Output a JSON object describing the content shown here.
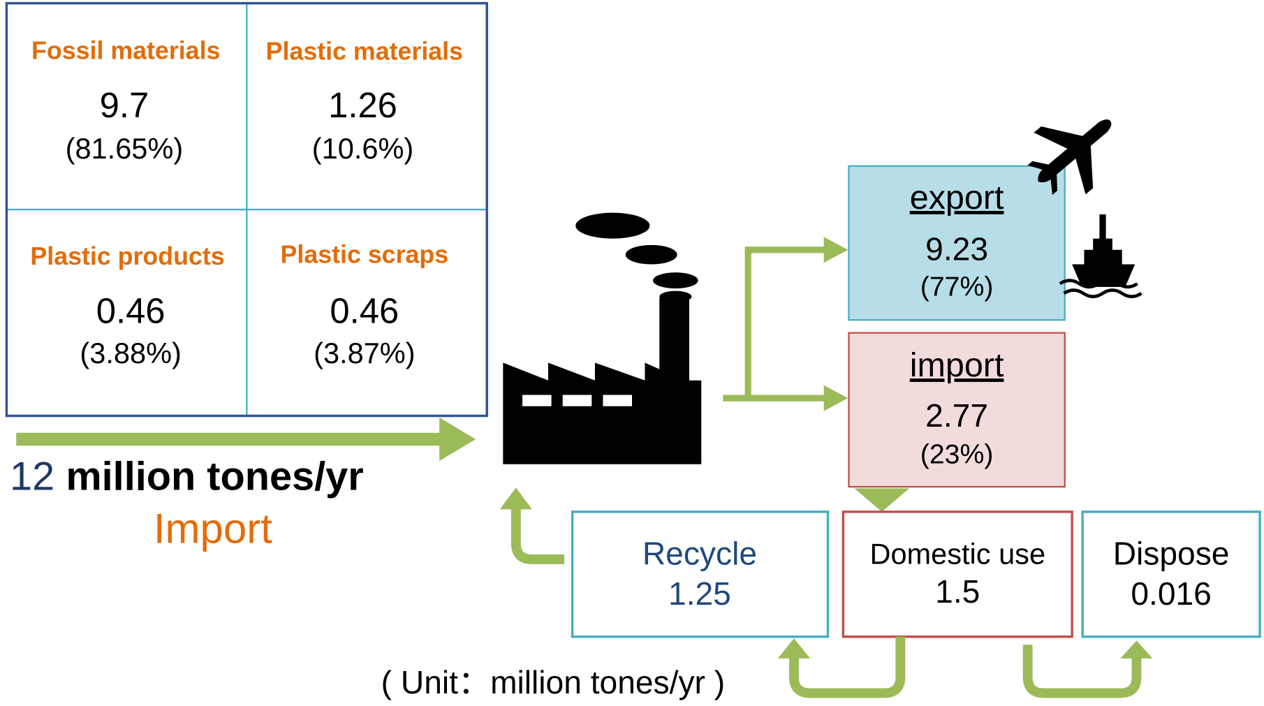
{
  "import_box": {
    "cells": [
      {
        "label": "Fossil materials",
        "value": "9.7",
        "share": "(81.65%)"
      },
      {
        "label": "Plastic materials",
        "value": "1.26",
        "share": "(10.6%)"
      },
      {
        "label": "Plastic products",
        "value": "0.46",
        "share": "(3.88%)"
      },
      {
        "label": "Plastic scraps",
        "value": "0.46",
        "share": "(3.87%)"
      }
    ]
  },
  "import_total": {
    "amount": "12",
    "unit": "million tones/yr",
    "label": "Import"
  },
  "export": {
    "label": "export",
    "value": "9.23",
    "share": "(77%)"
  },
  "import": {
    "label": "import",
    "value": "2.77",
    "share": "(23%)"
  },
  "recycle": {
    "label": "Recycle",
    "value": "1.25"
  },
  "domestic_use": {
    "label": "Domestic use",
    "value": "1.5"
  },
  "dispose": {
    "label": "Dispose",
    "value": "0.016"
  },
  "unit_note": "( Unit：million tones/yr )"
}
